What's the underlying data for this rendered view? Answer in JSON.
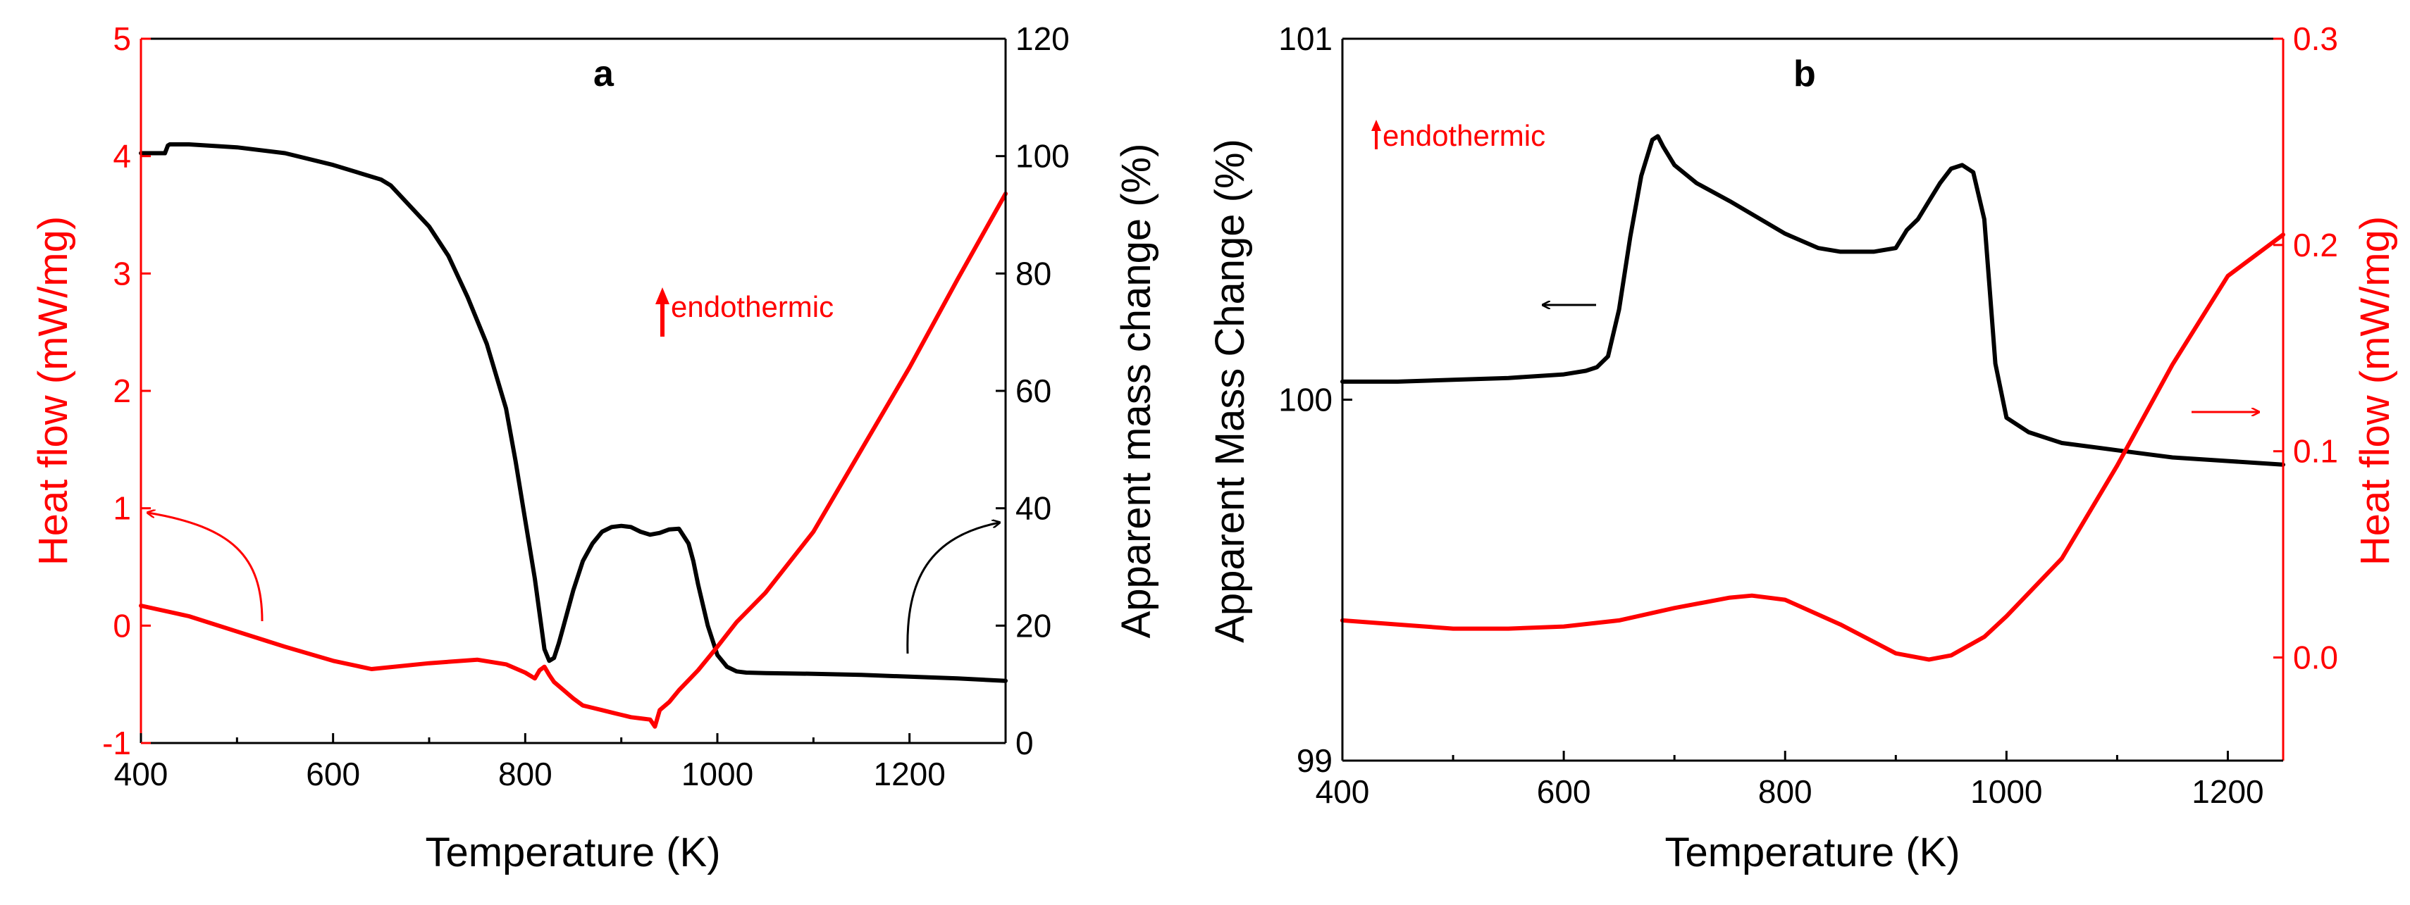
{
  "colors": {
    "black": "#000000",
    "red": "#ff0000"
  },
  "chart_data": [
    {
      "panel": "a",
      "type": "line",
      "panel_label": "a",
      "xlabel": "Temperature (K)",
      "ylabel_left": "Heat flow (mW/mg)",
      "ylabel_right": "Apparent mass change (%)",
      "xlim": [
        400,
        1300
      ],
      "ylim_left": [
        -1,
        5
      ],
      "ylim_right": [
        0,
        120
      ],
      "x_ticks": [
        "400",
        "600",
        "800",
        "1000",
        "1200"
      ],
      "x_tick_values": [
        400,
        600,
        800,
        1000,
        1200
      ],
      "y_left_ticks": [
        "-1",
        "0",
        "1",
        "2",
        "3",
        "4",
        "5"
      ],
      "y_left_tick_values": [
        -1,
        0,
        1,
        2,
        3,
        4,
        5
      ],
      "y_right_ticks": [
        "0",
        "20",
        "40",
        "60",
        "80",
        "100",
        "120"
      ],
      "y_right_tick_values": [
        0,
        20,
        40,
        60,
        80,
        100,
        120
      ],
      "annotation": "endothermic",
      "series": [
        {
          "name": "Apparent mass change",
          "axis": "right",
          "color": "#000000",
          "x": [
            400,
            425,
            428,
            430,
            450,
            500,
            550,
            600,
            650,
            660,
            700,
            720,
            740,
            760,
            780,
            790,
            800,
            810,
            815,
            820,
            825,
            830,
            835,
            840,
            850,
            860,
            870,
            880,
            890,
            900,
            910,
            920,
            930,
            940,
            950,
            960,
            970,
            975,
            980,
            990,
            1000,
            1010,
            1020,
            1030,
            1050,
            1100,
            1150,
            1200,
            1250,
            1300
          ],
          "y": [
            100.5,
            100.5,
            101.8,
            102.0,
            102.0,
            101.5,
            100.5,
            98.5,
            96.0,
            95.0,
            88.0,
            83.0,
            76.0,
            68.0,
            57.0,
            48.0,
            38.0,
            28.0,
            22.0,
            16.0,
            14.0,
            14.5,
            17.0,
            20.0,
            26.0,
            31.0,
            34.0,
            36.0,
            36.8,
            37.0,
            36.8,
            36.0,
            35.5,
            35.8,
            36.4,
            36.5,
            34.0,
            31.0,
            27.0,
            20.0,
            15.0,
            13.0,
            12.2,
            12.0,
            11.9,
            11.8,
            11.6,
            11.3,
            11.0,
            10.6
          ]
        },
        {
          "name": "Heat flow",
          "axis": "left",
          "color": "#ff0000",
          "x": [
            400,
            450,
            500,
            550,
            600,
            640,
            700,
            750,
            780,
            800,
            810,
            815,
            820,
            825,
            830,
            840,
            850,
            860,
            870,
            880,
            890,
            900,
            910,
            920,
            930,
            935,
            940,
            950,
            960,
            980,
            1000,
            1020,
            1050,
            1100,
            1150,
            1200,
            1250,
            1300
          ],
          "y": [
            0.17,
            0.08,
            -0.05,
            -0.18,
            -0.3,
            -0.37,
            -0.32,
            -0.29,
            -0.33,
            -0.4,
            -0.45,
            -0.38,
            -0.35,
            -0.42,
            -0.48,
            -0.55,
            -0.62,
            -0.68,
            -0.7,
            -0.72,
            -0.74,
            -0.76,
            -0.78,
            -0.79,
            -0.8,
            -0.86,
            -0.72,
            -0.65,
            -0.55,
            -0.38,
            -0.18,
            0.03,
            0.28,
            0.8,
            1.5,
            2.2,
            2.95,
            3.68
          ]
        }
      ]
    },
    {
      "panel": "b",
      "type": "line",
      "panel_label": "b",
      "xlabel": "Temperature (K)",
      "ylabel_left": "Apparent Mass Change (%)",
      "ylabel_right": "Heat flow (mW/mg)",
      "xlim": [
        400,
        1250
      ],
      "ylim_left": [
        99,
        101
      ],
      "ylim_right": [
        -0.05,
        0.3
      ],
      "x_ticks": [
        "400",
        "600",
        "800",
        "1000",
        "1200"
      ],
      "x_tick_values": [
        400,
        600,
        800,
        1000,
        1200
      ],
      "y_left_ticks": [
        "99",
        "100",
        "101"
      ],
      "y_left_tick_values": [
        99,
        100,
        101
      ],
      "y_right_ticks": [
        "0.0",
        "0.1",
        "0.2",
        "0.3"
      ],
      "y_right_tick_values": [
        0.0,
        0.1,
        0.2,
        0.3
      ],
      "annotation": "endothermic",
      "series": [
        {
          "name": "Apparent mass change",
          "axis": "left",
          "color": "#000000",
          "x": [
            400,
            450,
            500,
            550,
            600,
            620,
            630,
            640,
            650,
            660,
            670,
            680,
            685,
            690,
            700,
            720,
            750,
            800,
            830,
            850,
            880,
            900,
            910,
            920,
            930,
            940,
            950,
            960,
            970,
            980,
            985,
            990,
            1000,
            1020,
            1050,
            1100,
            1150,
            1200,
            1250
          ],
          "y": [
            100.05,
            100.05,
            100.055,
            100.06,
            100.07,
            100.08,
            100.09,
            100.12,
            100.25,
            100.45,
            100.62,
            100.72,
            100.73,
            100.7,
            100.65,
            100.6,
            100.55,
            100.46,
            100.42,
            100.41,
            100.41,
            100.42,
            100.47,
            100.5,
            100.55,
            100.6,
            100.64,
            100.65,
            100.63,
            100.5,
            100.3,
            100.1,
            99.95,
            99.91,
            99.88,
            99.86,
            99.84,
            99.83,
            99.82
          ]
        },
        {
          "name": "Heat flow",
          "axis": "right",
          "color": "#ff0000",
          "x": [
            400,
            450,
            500,
            550,
            600,
            650,
            700,
            750,
            770,
            800,
            850,
            900,
            930,
            950,
            980,
            1000,
            1050,
            1100,
            1150,
            1200,
            1250
          ],
          "y": [
            0.018,
            0.016,
            0.014,
            0.014,
            0.015,
            0.018,
            0.024,
            0.029,
            0.03,
            0.028,
            0.016,
            0.002,
            -0.001,
            0.001,
            0.01,
            0.02,
            0.048,
            0.093,
            0.142,
            0.185,
            0.205
          ]
        }
      ]
    }
  ]
}
